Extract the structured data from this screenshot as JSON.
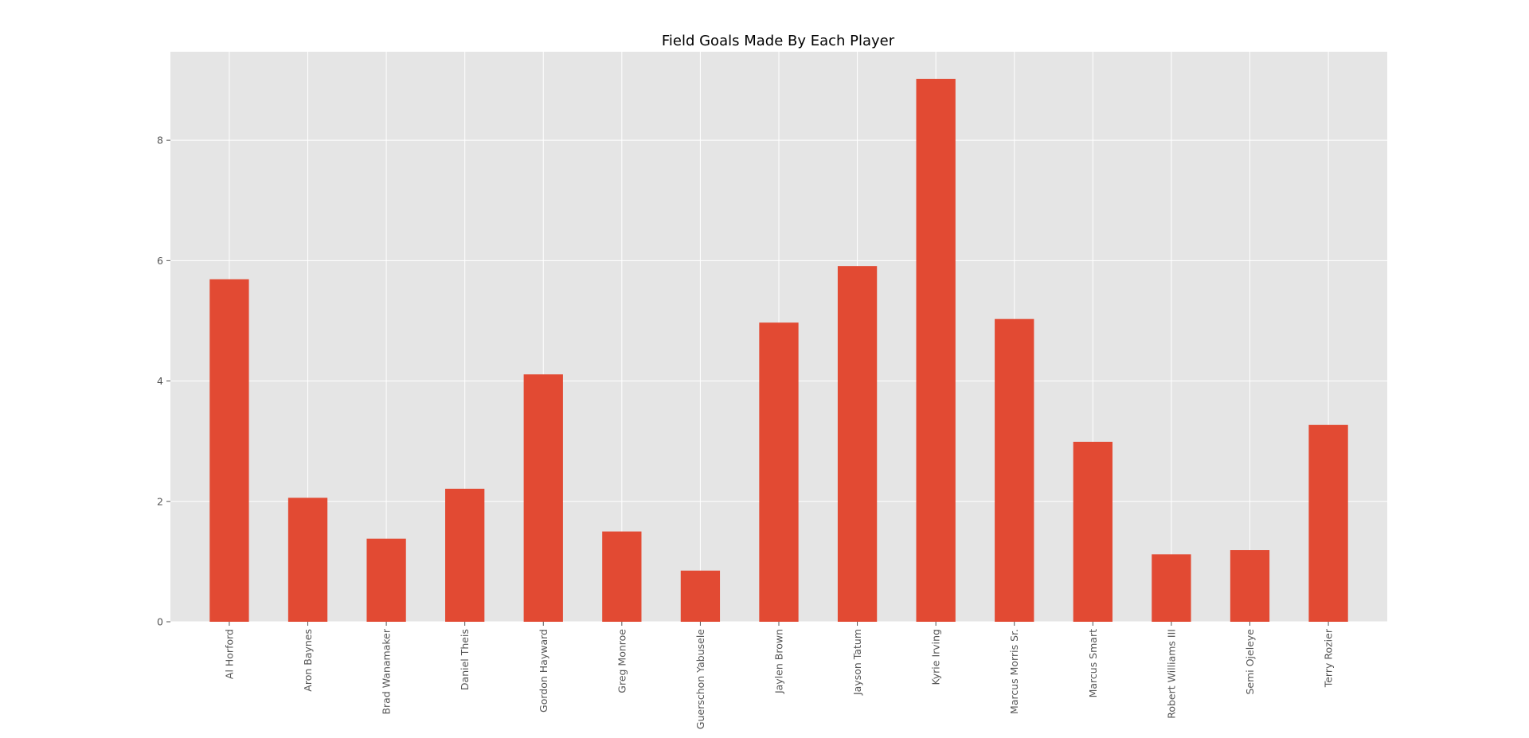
{
  "chart_data": {
    "type": "bar",
    "title": "Field Goals Made By Each Player",
    "xlabel": "",
    "ylabel": "",
    "categories": [
      "Al Horford",
      "Aron Baynes",
      "Brad Wanamaker",
      "Daniel Theis",
      "Gordon Hayward",
      "Greg Monroe",
      "Guerschon Yabusele",
      "Jaylen Brown",
      "Jayson Tatum",
      "Kyrie Irving",
      "Marcus Morris Sr.",
      "Marcus Smart",
      "Robert Williams III",
      "Semi Ojeleye",
      "Terry Rozier"
    ],
    "values": [
      5.69,
      2.06,
      1.38,
      2.21,
      4.11,
      1.5,
      0.85,
      4.97,
      5.91,
      9.02,
      5.03,
      2.99,
      1.12,
      1.19,
      3.27
    ],
    "ylim": [
      0,
      9.47
    ],
    "yticks": [
      0,
      2,
      4,
      6,
      8
    ],
    "grid": true,
    "colors": {
      "bar": "#E24A33",
      "plot_background": "#E5E5E5",
      "grid": "#FFFFFF"
    }
  }
}
